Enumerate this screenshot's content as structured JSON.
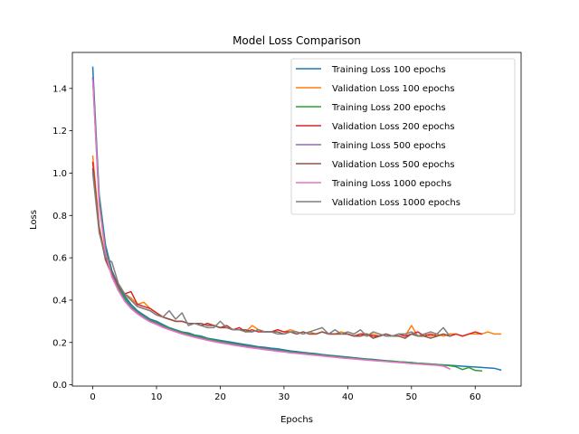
{
  "chart_data": {
    "type": "line",
    "title": "Model Loss Comparison",
    "xlabel": "Epochs",
    "ylabel": "Loss",
    "xlim": [
      -3.2,
      67.2
    ],
    "ylim": [
      -0.006,
      1.57
    ],
    "xticks": [
      0,
      10,
      20,
      30,
      40,
      50,
      60
    ],
    "yticks": [
      0.0,
      0.2,
      0.4,
      0.6,
      0.8,
      1.0,
      1.2,
      1.4
    ],
    "grid": false,
    "legend_position": "top-right",
    "series": [
      {
        "name": "Training Loss 100 epochs",
        "color": "#1f77b4",
        "x": [
          0,
          1,
          2,
          3,
          4,
          5,
          6,
          7,
          8,
          9,
          10,
          11,
          12,
          13,
          14,
          15,
          16,
          17,
          18,
          19,
          20,
          21,
          22,
          23,
          24,
          25,
          26,
          27,
          28,
          29,
          30,
          31,
          32,
          33,
          34,
          35,
          36,
          37,
          38,
          39,
          40,
          41,
          42,
          43,
          44,
          45,
          46,
          47,
          48,
          49,
          50,
          51,
          52,
          53,
          54,
          55,
          56,
          57,
          58,
          59,
          60,
          61,
          62,
          63,
          64
        ],
        "y": [
          1.5,
          0.9,
          0.66,
          0.54,
          0.47,
          0.42,
          0.38,
          0.35,
          0.33,
          0.31,
          0.3,
          0.285,
          0.27,
          0.26,
          0.25,
          0.245,
          0.235,
          0.23,
          0.22,
          0.215,
          0.21,
          0.205,
          0.2,
          0.195,
          0.19,
          0.185,
          0.18,
          0.177,
          0.173,
          0.17,
          0.165,
          0.16,
          0.157,
          0.153,
          0.15,
          0.147,
          0.143,
          0.14,
          0.137,
          0.134,
          0.131,
          0.128,
          0.125,
          0.122,
          0.12,
          0.117,
          0.114,
          0.112,
          0.109,
          0.107,
          0.105,
          0.102,
          0.1,
          0.098,
          0.096,
          0.094,
          0.092,
          0.09,
          0.088,
          0.086,
          0.084,
          0.082,
          0.08,
          0.078,
          0.07
        ]
      },
      {
        "name": "Validation Loss 100 epochs",
        "color": "#ff7f0e",
        "x": [
          0,
          1,
          2,
          3,
          4,
          5,
          6,
          7,
          8,
          9,
          10,
          11,
          12,
          13,
          14,
          15,
          16,
          17,
          18,
          19,
          20,
          21,
          22,
          23,
          24,
          25,
          26,
          27,
          28,
          29,
          30,
          31,
          32,
          33,
          34,
          35,
          36,
          37,
          38,
          39,
          40,
          41,
          42,
          43,
          44,
          45,
          46,
          47,
          48,
          49,
          50,
          51,
          52,
          53,
          54,
          55,
          56,
          57,
          58,
          59,
          60,
          61,
          62,
          63,
          64
        ],
        "y": [
          1.08,
          0.75,
          0.6,
          0.52,
          0.47,
          0.43,
          0.41,
          0.38,
          0.39,
          0.36,
          0.34,
          0.32,
          0.31,
          0.3,
          0.3,
          0.29,
          0.29,
          0.28,
          0.29,
          0.28,
          0.27,
          0.27,
          0.26,
          0.26,
          0.25,
          0.28,
          0.26,
          0.25,
          0.25,
          0.26,
          0.25,
          0.26,
          0.25,
          0.24,
          0.25,
          0.24,
          0.25,
          0.24,
          0.24,
          0.25,
          0.24,
          0.23,
          0.24,
          0.23,
          0.24,
          0.23,
          0.24,
          0.23,
          0.24,
          0.23,
          0.28,
          0.23,
          0.24,
          0.23,
          0.24,
          0.23,
          0.24,
          0.24,
          0.23,
          0.24,
          0.24,
          0.24,
          0.25,
          0.24,
          0.24
        ]
      },
      {
        "name": "Training Loss 200 epochs",
        "color": "#2ca02c",
        "x": [
          0,
          1,
          2,
          3,
          4,
          5,
          6,
          7,
          8,
          9,
          10,
          11,
          12,
          13,
          14,
          15,
          16,
          17,
          18,
          19,
          20,
          21,
          22,
          23,
          24,
          25,
          26,
          27,
          28,
          29,
          30,
          31,
          32,
          33,
          34,
          35,
          36,
          37,
          38,
          39,
          40,
          41,
          42,
          43,
          44,
          45,
          46,
          47,
          48,
          49,
          50,
          51,
          52,
          53,
          54,
          55,
          56,
          57,
          58,
          59,
          60,
          61
        ],
        "y": [
          1.45,
          0.88,
          0.64,
          0.53,
          0.46,
          0.41,
          0.37,
          0.345,
          0.325,
          0.305,
          0.295,
          0.28,
          0.268,
          0.258,
          0.248,
          0.24,
          0.232,
          0.225,
          0.218,
          0.212,
          0.206,
          0.2,
          0.195,
          0.19,
          0.185,
          0.18,
          0.176,
          0.172,
          0.168,
          0.164,
          0.16,
          0.156,
          0.153,
          0.15,
          0.147,
          0.144,
          0.141,
          0.138,
          0.135,
          0.132,
          0.129,
          0.126,
          0.123,
          0.121,
          0.118,
          0.116,
          0.113,
          0.111,
          0.109,
          0.107,
          0.105,
          0.102,
          0.1,
          0.098,
          0.096,
          0.094,
          0.09,
          0.085,
          0.072,
          0.082,
          0.068,
          0.066
        ]
      },
      {
        "name": "Validation Loss 200 epochs",
        "color": "#d62728",
        "x": [
          0,
          1,
          2,
          3,
          4,
          5,
          6,
          7,
          8,
          9,
          10,
          11,
          12,
          13,
          14,
          15,
          16,
          17,
          18,
          19,
          20,
          21,
          22,
          23,
          24,
          25,
          26,
          27,
          28,
          29,
          30,
          31,
          32,
          33,
          34,
          35,
          36,
          37,
          38,
          39,
          40,
          41,
          42,
          43,
          44,
          45,
          46,
          47,
          48,
          49,
          50,
          51,
          52,
          53,
          54,
          55,
          56,
          57,
          58,
          59,
          60,
          61
        ],
        "y": [
          1.05,
          0.74,
          0.59,
          0.52,
          0.47,
          0.43,
          0.44,
          0.38,
          0.37,
          0.36,
          0.34,
          0.32,
          0.31,
          0.3,
          0.3,
          0.29,
          0.29,
          0.28,
          0.29,
          0.28,
          0.27,
          0.28,
          0.26,
          0.27,
          0.25,
          0.26,
          0.25,
          0.25,
          0.25,
          0.26,
          0.25,
          0.25,
          0.24,
          0.25,
          0.24,
          0.24,
          0.25,
          0.24,
          0.24,
          0.24,
          0.24,
          0.23,
          0.24,
          0.24,
          0.23,
          0.23,
          0.24,
          0.23,
          0.24,
          0.23,
          0.24,
          0.25,
          0.23,
          0.24,
          0.23,
          0.24,
          0.23,
          0.24,
          0.23,
          0.24,
          0.25,
          0.24
        ]
      },
      {
        "name": "Training Loss 500 epochs",
        "color": "#9467bd",
        "x": [
          0,
          1,
          2,
          3,
          4,
          5,
          6,
          7,
          8,
          9,
          10,
          11,
          12,
          13,
          14,
          15,
          16,
          17,
          18,
          19,
          20,
          21,
          22,
          23,
          24,
          25,
          26,
          27,
          28,
          29,
          30,
          31,
          32,
          33,
          34,
          35,
          36,
          37,
          38,
          39,
          40,
          41,
          42,
          43,
          44,
          45,
          46,
          47,
          48,
          49,
          50,
          51,
          52,
          53,
          54,
          55,
          56
        ],
        "y": [
          1.45,
          0.86,
          0.63,
          0.52,
          0.45,
          0.4,
          0.365,
          0.34,
          0.32,
          0.3,
          0.29,
          0.275,
          0.263,
          0.253,
          0.243,
          0.235,
          0.227,
          0.22,
          0.213,
          0.207,
          0.201,
          0.196,
          0.191,
          0.186,
          0.181,
          0.177,
          0.173,
          0.169,
          0.165,
          0.161,
          0.157,
          0.153,
          0.15,
          0.147,
          0.144,
          0.141,
          0.138,
          0.135,
          0.132,
          0.129,
          0.126,
          0.123,
          0.121,
          0.118,
          0.116,
          0.113,
          0.111,
          0.108,
          0.106,
          0.104,
          0.101,
          0.099,
          0.097,
          0.095,
          0.093,
          0.091,
          0.075
        ]
      },
      {
        "name": "Validation Loss 500 epochs",
        "color": "#8c564b",
        "x": [
          0,
          1,
          2,
          3,
          4,
          5,
          6,
          7,
          8,
          9,
          10,
          11,
          12,
          13,
          14,
          15,
          16,
          17,
          18,
          19,
          20,
          21,
          22,
          23,
          24,
          25,
          26,
          27,
          28,
          29,
          30,
          31,
          32,
          33,
          34,
          35,
          36,
          37,
          38,
          39,
          40,
          41,
          42,
          43,
          44,
          45,
          46,
          47,
          48,
          49,
          50,
          51,
          52,
          53,
          54,
          55,
          56
        ],
        "y": [
          1.02,
          0.73,
          0.59,
          0.53,
          0.47,
          0.43,
          0.4,
          0.37,
          0.36,
          0.35,
          0.33,
          0.32,
          0.31,
          0.3,
          0.3,
          0.29,
          0.29,
          0.29,
          0.28,
          0.28,
          0.27,
          0.27,
          0.26,
          0.26,
          0.26,
          0.25,
          0.26,
          0.25,
          0.25,
          0.25,
          0.24,
          0.25,
          0.24,
          0.25,
          0.24,
          0.24,
          0.25,
          0.24,
          0.24,
          0.24,
          0.24,
          0.23,
          0.23,
          0.24,
          0.22,
          0.23,
          0.24,
          0.23,
          0.23,
          0.22,
          0.24,
          0.23,
          0.23,
          0.22,
          0.23,
          0.24,
          0.23
        ]
      },
      {
        "name": "Training Loss 1000 epochs",
        "color": "#e377c2",
        "x": [
          0,
          1,
          2,
          3,
          4,
          5,
          6,
          7,
          8,
          9,
          10,
          11,
          12,
          13,
          14,
          15,
          16,
          17,
          18,
          19,
          20,
          21,
          22,
          23,
          24,
          25,
          26,
          27,
          28,
          29,
          30,
          31,
          32,
          33,
          34,
          35,
          36,
          37,
          38,
          39,
          40,
          41,
          42,
          43,
          44,
          45,
          46,
          47,
          48,
          49,
          50,
          51,
          52,
          53,
          54,
          55,
          56
        ],
        "y": [
          1.44,
          0.85,
          0.62,
          0.51,
          0.445,
          0.395,
          0.36,
          0.335,
          0.315,
          0.297,
          0.285,
          0.271,
          0.26,
          0.25,
          0.24,
          0.232,
          0.224,
          0.217,
          0.21,
          0.204,
          0.198,
          0.193,
          0.188,
          0.183,
          0.178,
          0.174,
          0.17,
          0.166,
          0.162,
          0.158,
          0.155,
          0.151,
          0.148,
          0.145,
          0.142,
          0.139,
          0.136,
          0.133,
          0.13,
          0.127,
          0.124,
          0.122,
          0.119,
          0.117,
          0.114,
          0.112,
          0.11,
          0.107,
          0.105,
          0.103,
          0.1,
          0.098,
          0.096,
          0.094,
          0.092,
          0.088,
          0.075
        ]
      },
      {
        "name": "Validation Loss 1000 epochs",
        "color": "#7f7f7f",
        "x": [
          0,
          1,
          2,
          3,
          4,
          5,
          6,
          7,
          8,
          9,
          10,
          11,
          12,
          13,
          14,
          15,
          16,
          17,
          18,
          19,
          20,
          21,
          22,
          23,
          24,
          25,
          26,
          27,
          28,
          29,
          30,
          31,
          32,
          33,
          34,
          35,
          36,
          37,
          38,
          39,
          40,
          41,
          42,
          43,
          44,
          45,
          46,
          47,
          48,
          49,
          50,
          51,
          52,
          53,
          54,
          55,
          56
        ],
        "y": [
          1.0,
          0.72,
          0.6,
          0.58,
          0.48,
          0.43,
          0.4,
          0.37,
          0.36,
          0.35,
          0.33,
          0.32,
          0.35,
          0.31,
          0.34,
          0.28,
          0.29,
          0.28,
          0.27,
          0.27,
          0.3,
          0.27,
          0.26,
          0.26,
          0.25,
          0.25,
          0.26,
          0.25,
          0.25,
          0.24,
          0.24,
          0.25,
          0.25,
          0.24,
          0.25,
          0.26,
          0.27,
          0.24,
          0.26,
          0.24,
          0.25,
          0.24,
          0.26,
          0.23,
          0.25,
          0.24,
          0.23,
          0.23,
          0.24,
          0.24,
          0.25,
          0.23,
          0.24,
          0.25,
          0.24,
          0.27,
          0.23
        ]
      }
    ]
  }
}
